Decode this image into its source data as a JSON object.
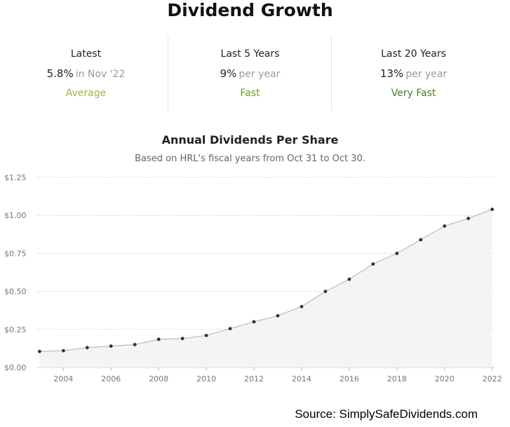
{
  "header": {
    "title": "Dividend Growth"
  },
  "stats": [
    {
      "label": "Latest",
      "value": "5.8%",
      "unit": "in Nov '22",
      "rating": "Average",
      "rating_color": "#9bb84a"
    },
    {
      "label": "Last 5 Years",
      "value": "9%",
      "unit": "per year",
      "rating": "Fast",
      "rating_color": "#6b9a2e"
    },
    {
      "label": "Last 20 Years",
      "value": "13%",
      "unit": "per year",
      "rating": "Very Fast",
      "rating_color": "#4a7a1e"
    }
  ],
  "footer": {
    "source": "Source: SimplySafeDividends.com"
  },
  "chart_data": {
    "type": "area",
    "title": "Annual Dividends Per Share",
    "subtitle": "Based on HRL's fiscal years from Oct 31 to Oct 30.",
    "x": [
      2003,
      2004,
      2005,
      2006,
      2007,
      2008,
      2009,
      2010,
      2011,
      2012,
      2013,
      2014,
      2015,
      2016,
      2017,
      2018,
      2019,
      2020,
      2021,
      2022
    ],
    "series": [
      {
        "values": [
          0.105,
          0.11,
          0.13,
          0.14,
          0.15,
          0.185,
          0.19,
          0.21,
          0.255,
          0.3,
          0.34,
          0.4,
          0.5,
          0.58,
          0.68,
          0.75,
          0.84,
          0.93,
          0.98,
          1.04
        ]
      }
    ],
    "x_ticks": [
      "2004",
      "2006",
      "2008",
      "2010",
      "2012",
      "2014",
      "2016",
      "2018",
      "2020",
      "2022"
    ],
    "y_ticks": [
      "$0.00",
      "$0.25",
      "$0.50",
      "$0.75",
      "$1.00",
      "$1.25"
    ],
    "y_tick_values": [
      0,
      0.25,
      0.5,
      0.75,
      1.0,
      1.25
    ],
    "xlim": [
      2002.9,
      2022.1
    ],
    "ylim": [
      0,
      1.25
    ],
    "grid": true,
    "line_color": "#bbbbbb",
    "fill_color": "#f4f4f4",
    "point_color": "#333333"
  }
}
